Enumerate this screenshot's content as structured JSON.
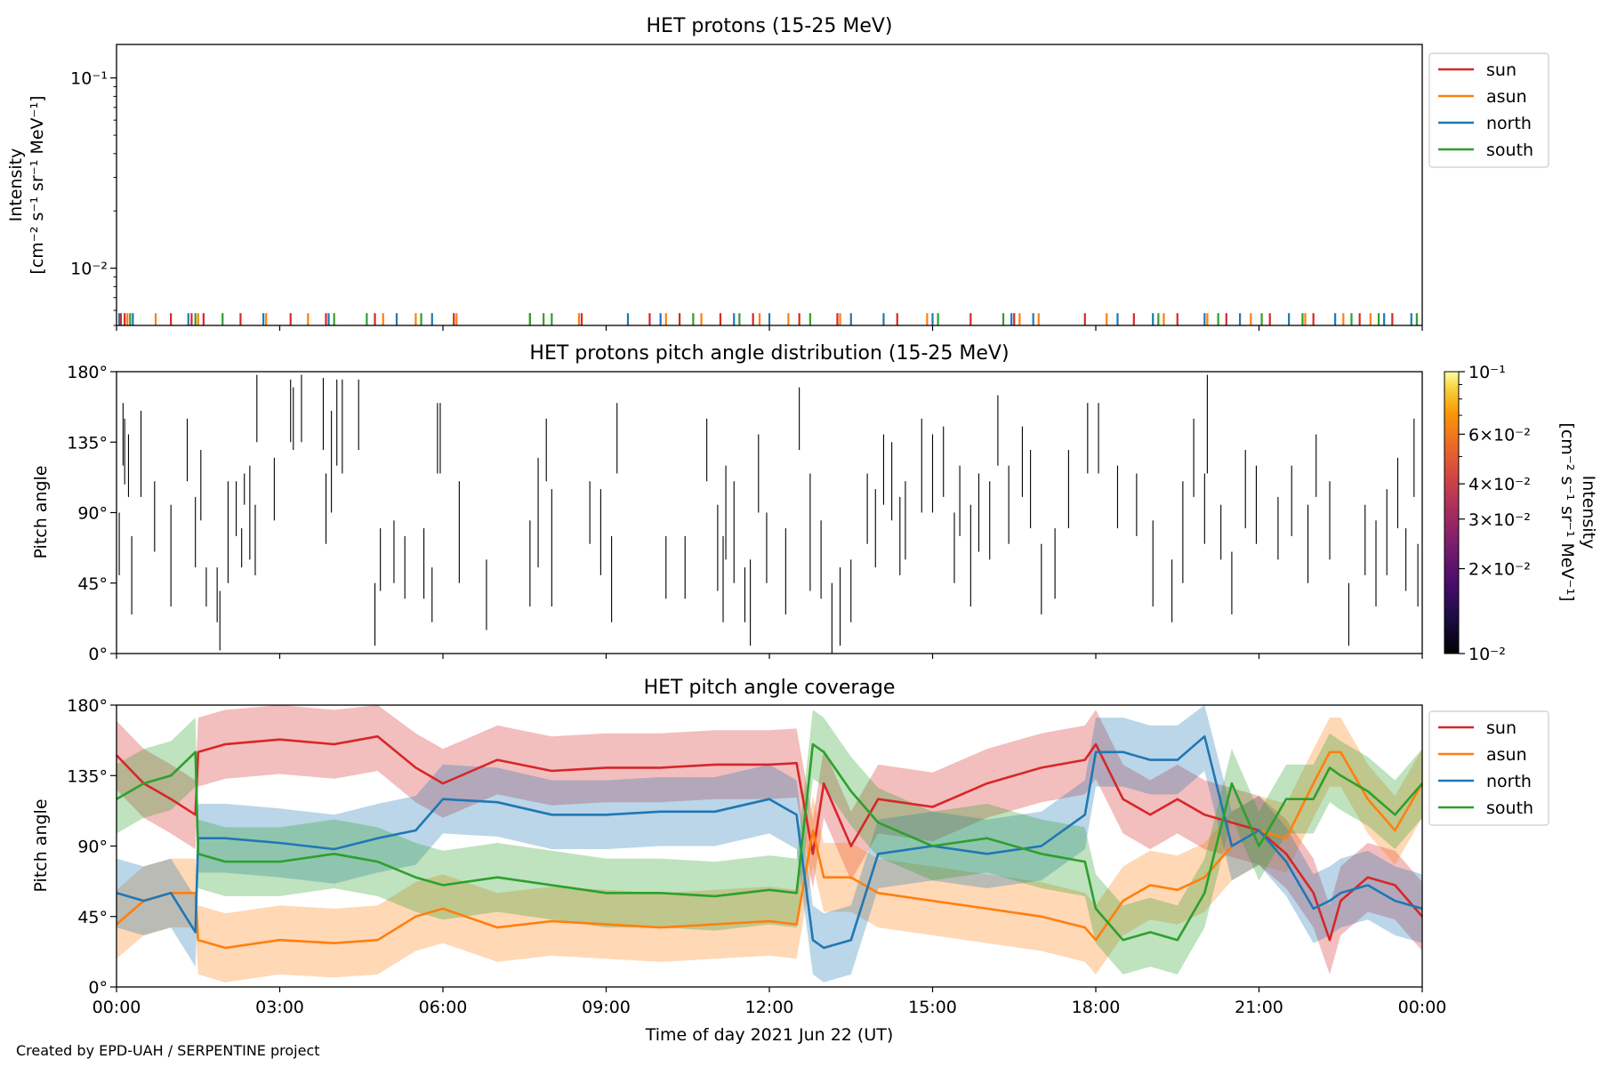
{
  "figure": {
    "footer": "Created by EPD-UAH / SERPENTINE project",
    "xlabel": "Time of day 2021 Jun 22 (UT)",
    "x_tick_labels": [
      "00:00",
      "03:00",
      "06:00",
      "09:00",
      "12:00",
      "15:00",
      "18:00",
      "21:00",
      "00:00"
    ],
    "series_colors": {
      "sun": "#d62728",
      "asun": "#ff7f0e",
      "north": "#1f77b4",
      "south": "#2ca02c"
    }
  },
  "chart_data": [
    {
      "type": "line",
      "title": "HET protons (15-25 MeV)",
      "ylabel": "Intensity",
      "yunit": "[cm⁻² s⁻¹ sr⁻¹ MeV⁻¹]",
      "yscale": "log",
      "ylim": [
        0.005,
        0.15
      ],
      "y_ticks": [
        {
          "value": 0.1,
          "label": "10⁻¹"
        },
        {
          "value": 0.01,
          "label": "10⁻²"
        }
      ],
      "xlim": [
        0,
        24
      ],
      "legend": {
        "position": "upper-right-outside",
        "entries": [
          "sun",
          "asun",
          "north",
          "south"
        ]
      },
      "series": [
        {
          "name": "sun",
          "color": "#d62728",
          "spike_times": [
            0.08,
            0.15,
            1.0,
            1.38,
            1.6,
            2.28,
            3.2,
            3.85,
            4.75,
            6.2,
            7.6,
            8.55,
            9.8,
            10.35,
            11.1,
            11.7,
            12.55,
            13.25,
            14.35,
            15.7,
            16.5,
            17.8,
            18.7,
            19.5,
            20.4,
            21.2,
            22.0,
            22.85,
            23.45
          ]
        },
        {
          "name": "asun",
          "color": "#ff7f0e",
          "spike_times": [
            0.2,
            0.72,
            1.5,
            2.75,
            3.52,
            4.9,
            5.5,
            6.25,
            8.5,
            10.1,
            10.75,
            11.82,
            12.35,
            13.3,
            14.9,
            16.6,
            16.95,
            18.2,
            19.25,
            20.05,
            20.85,
            21.85,
            22.55,
            23.05
          ]
        },
        {
          "name": "north",
          "color": "#1f77b4",
          "spike_times": [
            0.05,
            0.3,
            1.32,
            2.7,
            3.9,
            5.15,
            5.8,
            9.4,
            10.0,
            11.35,
            12.0,
            13.5,
            14.1,
            15.0,
            16.45,
            16.85,
            18.4,
            19.05,
            20.0,
            20.65,
            21.55,
            22.4,
            23.3,
            23.8
          ]
        },
        {
          "name": "south",
          "color": "#2ca02c",
          "spike_times": [
            0.25,
            1.45,
            1.95,
            4.0,
            4.6,
            5.6,
            7.6,
            7.85,
            8.0,
            10.6,
            11.45,
            12.75,
            15.1,
            16.3,
            19.15,
            20.25,
            21.05,
            21.8,
            22.7,
            23.2,
            23.9
          ]
        }
      ]
    },
    {
      "type": "heatmap",
      "title": "HET protons pitch angle distribution (15-25 MeV)",
      "ylabel": "Pitch angle",
      "ylim": [
        0,
        180
      ],
      "y_ticks": [
        {
          "value": 0,
          "label": "0°"
        },
        {
          "value": 45,
          "label": "45°"
        },
        {
          "value": 90,
          "label": "90°"
        },
        {
          "value": 135,
          "label": "135°"
        },
        {
          "value": 180,
          "label": "180°"
        }
      ],
      "xlim": [
        0,
        24
      ],
      "colorbar": {
        "label": "Intensity",
        "unit": "[cm⁻² s⁻¹ sr⁻¹ MeV⁻¹]",
        "scale": "log",
        "range": [
          0.01,
          0.1
        ],
        "colormap": "inferno",
        "ticks": [
          {
            "value": 0.1,
            "label": "10⁻¹"
          },
          {
            "value": 0.06,
            "label": "6×10⁻²"
          },
          {
            "value": 0.04,
            "label": "4×10⁻²"
          },
          {
            "value": 0.03,
            "label": "3×10⁻²"
          },
          {
            "value": 0.02,
            "label": "2×10⁻²"
          },
          {
            "value": 0.01,
            "label": "10⁻²"
          }
        ]
      },
      "segments": [
        [
          0.05,
          50,
          90
        ],
        [
          0.12,
          120,
          160
        ],
        [
          0.15,
          108,
          150
        ],
        [
          0.22,
          100,
          140
        ],
        [
          0.28,
          25,
          75
        ],
        [
          0.45,
          100,
          155
        ],
        [
          0.7,
          65,
          110
        ],
        [
          1.0,
          30,
          95
        ],
        [
          1.3,
          110,
          150
        ],
        [
          1.45,
          55,
          100
        ],
        [
          1.55,
          85,
          130
        ],
        [
          1.65,
          30,
          55
        ],
        [
          1.85,
          20,
          55
        ],
        [
          1.9,
          2,
          40
        ],
        [
          2.05,
          45,
          110
        ],
        [
          2.2,
          75,
          110
        ],
        [
          2.3,
          55,
          80
        ],
        [
          2.35,
          95,
          115
        ],
        [
          2.45,
          60,
          120
        ],
        [
          2.55,
          50,
          95
        ],
        [
          2.58,
          135,
          178
        ],
        [
          2.9,
          85,
          125
        ],
        [
          3.2,
          135,
          175
        ],
        [
          3.25,
          130,
          170
        ],
        [
          3.4,
          135,
          178
        ],
        [
          3.8,
          130,
          176
        ],
        [
          3.85,
          70,
          115
        ],
        [
          3.95,
          90,
          155
        ],
        [
          4.05,
          120,
          175
        ],
        [
          4.15,
          115,
          175
        ],
        [
          4.45,
          130,
          175
        ],
        [
          4.75,
          5,
          45
        ],
        [
          4.85,
          40,
          80
        ],
        [
          5.1,
          45,
          85
        ],
        [
          5.3,
          35,
          75
        ],
        [
          5.65,
          35,
          80
        ],
        [
          5.8,
          20,
          55
        ],
        [
          5.9,
          115,
          160
        ],
        [
          5.95,
          115,
          160
        ],
        [
          6.3,
          45,
          110
        ],
        [
          6.8,
          15,
          60
        ],
        [
          7.6,
          30,
          85
        ],
        [
          7.75,
          55,
          125
        ],
        [
          7.9,
          110,
          150
        ],
        [
          8.0,
          30,
          105
        ],
        [
          8.7,
          70,
          110
        ],
        [
          8.9,
          50,
          105
        ],
        [
          9.1,
          20,
          75
        ],
        [
          9.2,
          115,
          160
        ],
        [
          10.1,
          35,
          75
        ],
        [
          10.45,
          35,
          75
        ],
        [
          10.85,
          110,
          150
        ],
        [
          11.05,
          40,
          95
        ],
        [
          11.15,
          20,
          75
        ],
        [
          11.2,
          60,
          120
        ],
        [
          11.35,
          45,
          110
        ],
        [
          11.55,
          20,
          55
        ],
        [
          11.65,
          5,
          60
        ],
        [
          11.8,
          90,
          140
        ],
        [
          11.95,
          45,
          90
        ],
        [
          12.3,
          25,
          80
        ],
        [
          12.55,
          130,
          170
        ],
        [
          12.75,
          40,
          115
        ],
        [
          12.95,
          35,
          85
        ],
        [
          13.15,
          0,
          45
        ],
        [
          13.3,
          5,
          55
        ],
        [
          13.5,
          20,
          60
        ],
        [
          13.8,
          70,
          115
        ],
        [
          13.95,
          55,
          105
        ],
        [
          14.1,
          95,
          140
        ],
        [
          14.25,
          85,
          135
        ],
        [
          14.4,
          50,
          100
        ],
        [
          14.5,
          60,
          110
        ],
        [
          14.8,
          90,
          150
        ],
        [
          15.0,
          90,
          140
        ],
        [
          15.2,
          100,
          145
        ],
        [
          15.4,
          45,
          90
        ],
        [
          15.5,
          75,
          120
        ],
        [
          15.7,
          30,
          95
        ],
        [
          15.85,
          65,
          115
        ],
        [
          16.05,
          60,
          110
        ],
        [
          16.2,
          120,
          165
        ],
        [
          16.4,
          70,
          120
        ],
        [
          16.65,
          100,
          145
        ],
        [
          16.8,
          80,
          130
        ],
        [
          17.0,
          25,
          70
        ],
        [
          17.25,
          35,
          80
        ],
        [
          17.5,
          80,
          130
        ],
        [
          17.85,
          115,
          160
        ],
        [
          18.05,
          115,
          160
        ],
        [
          18.4,
          80,
          120
        ],
        [
          18.75,
          75,
          115
        ],
        [
          19.05,
          30,
          85
        ],
        [
          19.4,
          20,
          60
        ],
        [
          19.6,
          45,
          110
        ],
        [
          19.8,
          100,
          150
        ],
        [
          20.0,
          70,
          115
        ],
        [
          20.05,
          115,
          178
        ],
        [
          20.3,
          60,
          95
        ],
        [
          20.5,
          25,
          65
        ],
        [
          20.75,
          80,
          130
        ],
        [
          20.95,
          70,
          120
        ],
        [
          21.35,
          60,
          100
        ],
        [
          21.6,
          75,
          120
        ],
        [
          21.9,
          45,
          95
        ],
        [
          22.05,
          100,
          140
        ],
        [
          22.3,
          60,
          110
        ],
        [
          22.65,
          5,
          45
        ],
        [
          22.95,
          50,
          95
        ],
        [
          23.15,
          30,
          85
        ],
        [
          23.35,
          50,
          105
        ],
        [
          23.55,
          80,
          125
        ],
        [
          23.7,
          40,
          80
        ],
        [
          23.85,
          100,
          150
        ],
        [
          23.92,
          30,
          70
        ]
      ]
    },
    {
      "type": "area",
      "title": "HET pitch angle coverage",
      "ylabel": "Pitch angle",
      "ylim": [
        0,
        180
      ],
      "y_ticks": [
        {
          "value": 0,
          "label": "0°"
        },
        {
          "value": 45,
          "label": "45°"
        },
        {
          "value": 90,
          "label": "90°"
        },
        {
          "value": 135,
          "label": "135°"
        },
        {
          "value": 180,
          "label": "180°"
        }
      ],
      "xlim": [
        0,
        24
      ],
      "x_ticks": [
        0,
        3,
        6,
        9,
        12,
        15,
        18,
        21,
        24
      ],
      "legend": {
        "position": "upper-right-outside",
        "entries": [
          "sun",
          "asun",
          "north",
          "south"
        ]
      },
      "band_halfwidth": 22,
      "series": [
        {
          "name": "sun",
          "color": "#d62728",
          "x": [
            0,
            0.5,
            1,
            1.45,
            1.5,
            2,
            3,
            4,
            4.8,
            5.5,
            6,
            7,
            8,
            9,
            10,
            11,
            12,
            12.5,
            12.8,
            13,
            13.5,
            14,
            15,
            16,
            17,
            17.8,
            18,
            18.5,
            19,
            19.5,
            20,
            20.5,
            21,
            21.5,
            22,
            22.3,
            22.5,
            23,
            23.5,
            24
          ],
          "y": [
            148,
            130,
            120,
            110,
            150,
            155,
            158,
            155,
            160,
            140,
            130,
            145,
            138,
            140,
            140,
            142,
            142,
            143,
            85,
            130,
            90,
            120,
            115,
            130,
            140,
            145,
            155,
            120,
            110,
            120,
            110,
            105,
            100,
            85,
            60,
            30,
            55,
            70,
            65,
            45
          ]
        },
        {
          "name": "asun",
          "color": "#ff7f0e",
          "x": [
            0,
            0.5,
            1,
            1.45,
            1.5,
            2,
            3,
            4,
            4.8,
            5.5,
            6,
            7,
            8,
            9,
            10,
            11,
            12,
            12.5,
            12.8,
            13,
            13.5,
            14,
            15,
            16,
            17,
            17.8,
            18,
            18.5,
            19,
            19.5,
            20,
            20.5,
            21,
            21.5,
            22,
            22.3,
            22.5,
            23,
            23.5,
            24
          ],
          "y": [
            40,
            55,
            60,
            60,
            30,
            25,
            30,
            28,
            30,
            45,
            50,
            38,
            42,
            40,
            38,
            40,
            42,
            40,
            100,
            70,
            70,
            60,
            55,
            50,
            45,
            38,
            30,
            55,
            65,
            62,
            70,
            90,
            100,
            95,
            130,
            150,
            150,
            120,
            100,
            130
          ]
        },
        {
          "name": "north",
          "color": "#1f77b4",
          "x": [
            0,
            0.5,
            1,
            1.45,
            1.5,
            2,
            3,
            4,
            4.8,
            5.5,
            6,
            7,
            8,
            9,
            10,
            11,
            12,
            12.5,
            12.8,
            13,
            13.5,
            14,
            15,
            16,
            17,
            17.8,
            18,
            18.5,
            19,
            19.5,
            20,
            20.5,
            21,
            21.5,
            22,
            22.3,
            22.5,
            23,
            23.5,
            24
          ],
          "y": [
            60,
            55,
            60,
            35,
            95,
            95,
            92,
            88,
            95,
            100,
            120,
            118,
            110,
            110,
            112,
            112,
            120,
            110,
            30,
            25,
            30,
            85,
            90,
            85,
            90,
            110,
            150,
            150,
            145,
            145,
            160,
            90,
            100,
            80,
            50,
            55,
            60,
            65,
            55,
            50
          ]
        },
        {
          "name": "south",
          "color": "#2ca02c",
          "x": [
            0,
            0.5,
            1,
            1.45,
            1.5,
            2,
            3,
            4,
            4.8,
            5.5,
            6,
            7,
            8,
            9,
            10,
            11,
            12,
            12.5,
            12.8,
            13,
            13.5,
            14,
            15,
            16,
            17,
            17.8,
            18,
            18.5,
            19,
            19.5,
            20,
            20.5,
            21,
            21.5,
            22,
            22.3,
            22.5,
            23,
            23.5,
            24
          ],
          "y": [
            120,
            130,
            135,
            150,
            85,
            80,
            80,
            85,
            80,
            70,
            65,
            70,
            65,
            60,
            60,
            58,
            62,
            60,
            155,
            150,
            125,
            105,
            90,
            95,
            85,
            80,
            50,
            30,
            35,
            30,
            60,
            130,
            90,
            120,
            120,
            140,
            135,
            125,
            110,
            130
          ]
        }
      ]
    }
  ]
}
